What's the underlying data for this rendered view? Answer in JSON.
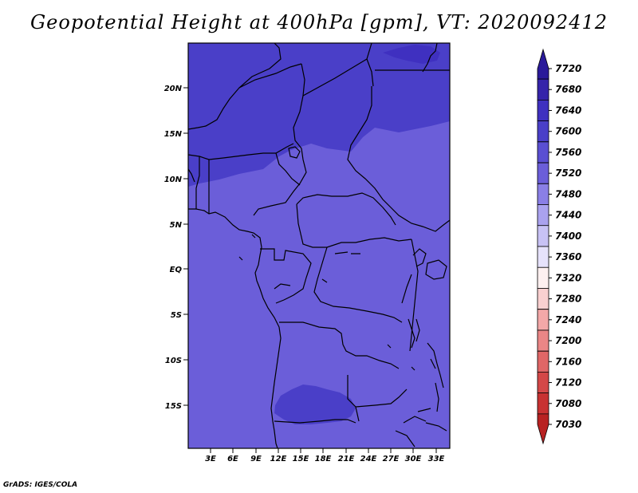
{
  "title": "Geopotential Height at 400hPa [gpm], VT: 2020092412",
  "footer": "GrADS: IGES/COLA",
  "map": {
    "lat_labels": [
      "20N",
      "15N",
      "10N",
      "5N",
      "EQ",
      "5S",
      "10S",
      "15S"
    ],
    "lon_labels": [
      "3E",
      "6E",
      "9E",
      "12E",
      "15E",
      "18E",
      "21E",
      "24E",
      "27E",
      "30E",
      "33E"
    ],
    "shading": {
      "base": "#6b5ed9",
      "north": "#4a3fc8",
      "south_blob": "#4a3fc8",
      "outline": "#000000"
    }
  },
  "colorbar": {
    "labels": [
      "7720",
      "7680",
      "7640",
      "7600",
      "7560",
      "7520",
      "7480",
      "7440",
      "7400",
      "7360",
      "7320",
      "7280",
      "7240",
      "7200",
      "7160",
      "7120",
      "7080",
      "7030"
    ],
    "colors": [
      "#2a1a9a",
      "#3524aa",
      "#3f30c0",
      "#4a3fc8",
      "#5a4fd2",
      "#6b5ed9",
      "#8a7fe6",
      "#aaa2ef",
      "#c8c2f5",
      "#e6e2fb",
      "#fdf0f0",
      "#f9d0d0",
      "#f3a8a8",
      "#ea8686",
      "#e06666",
      "#d44848",
      "#c83232",
      "#b82222"
    ]
  }
}
